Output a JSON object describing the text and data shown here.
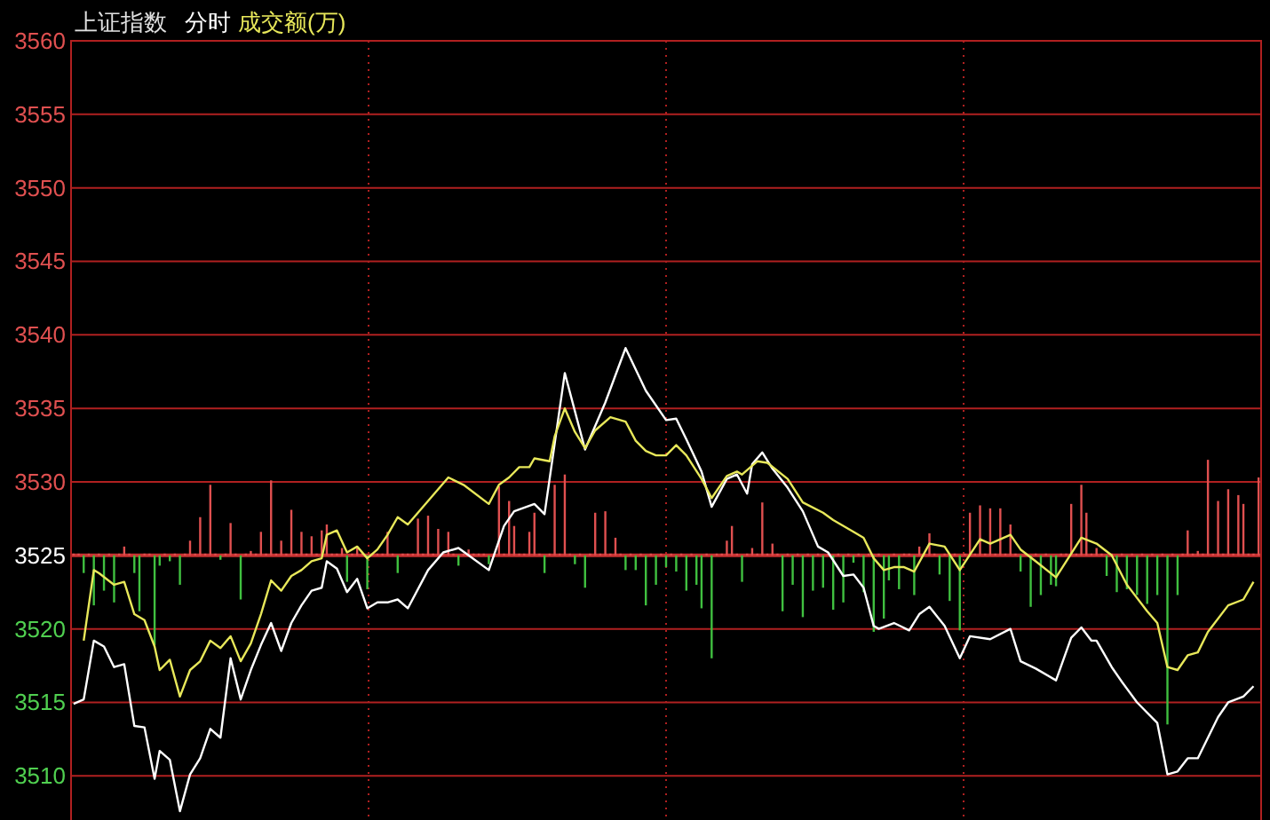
{
  "chart_data": {
    "type": "line",
    "title": "上证指数",
    "subtitle": "分时",
    "ylim": [
      3507,
      3560
    ],
    "yticks": [
      3510,
      3515,
      3520,
      3525,
      3530,
      3535,
      3540,
      3545,
      3550,
      3555,
      3560
    ],
    "grid": "y",
    "tick_labels": "y",
    "legend": "top left",
    "marker": "none",
    "line_style": "solid",
    "categories": [
      null,
      null,
      null,
      null,
      null,
      null,
      null,
      null,
      null,
      null,
      null,
      null,
      null,
      null,
      null,
      null,
      null,
      null,
      null,
      null,
      null,
      null,
      null,
      null,
      null,
      null,
      null,
      null,
      null,
      null,
      null,
      null,
      null,
      null,
      null,
      null,
      null,
      null,
      null,
      null,
      null,
      null,
      null,
      null,
      null,
      null,
      null,
      null,
      null,
      null,
      null,
      null,
      null,
      null,
      null,
      null,
      null,
      null,
      null,
      null,
      null,
      null,
      null,
      null,
      null,
      null,
      null,
      null,
      null,
      null,
      null,
      null,
      null,
      null,
      null,
      null,
      null,
      null,
      null,
      null,
      null,
      null,
      null,
      null,
      null,
      null,
      null,
      null,
      null,
      null,
      null,
      null,
      null,
      null,
      null,
      null,
      null,
      null,
      null,
      null,
      null,
      null,
      null,
      null,
      null,
      null,
      null,
      null,
      null,
      null,
      null,
      null,
      null,
      null,
      null,
      null,
      null,
      null,
      null,
      null,
      null,
      null,
      null,
      null,
      null,
      null,
      null,
      null,
      null,
      null,
      null,
      null,
      null,
      null,
      null,
      null,
      null,
      null,
      null,
      null,
      null,
      null,
      null,
      null,
      null,
      null,
      null,
      null,
      null,
      null,
      null,
      null,
      null,
      null,
      null,
      null,
      null,
      null,
      null,
      null,
      null,
      null,
      null,
      null,
      null,
      null,
      null,
      null,
      null,
      null,
      null,
      null,
      null,
      null,
      null,
      null,
      null,
      null,
      null,
      null,
      null,
      null,
      null,
      null,
      null,
      null,
      null,
      null,
      null,
      null,
      null,
      null,
      null,
      null,
      null,
      null,
      null,
      null,
      null,
      null,
      null,
      null,
      null,
      null,
      null,
      null,
      null,
      null,
      null,
      null,
      null,
      null,
      null,
      null,
      null,
      null,
      null,
      null,
      null,
      null,
      null,
      null,
      null,
      null,
      null,
      null,
      null,
      null,
      null,
      null,
      null,
      null,
      null,
      null,
      null
    ],
    "ref_lines": [
      {
        "axis": "y",
        "value": 3525,
        "color": "#c83232",
        "line_style": "solid"
      }
    ],
    "series": [
      {
        "type": "bar",
        "colors": [
          "#e05050",
          "#e05050",
          "#40c040",
          "#e05050",
          "#40c040",
          "#e05050",
          "#40c040",
          "#e05050",
          "#40c040",
          "#e05050",
          "#e05050",
          "#e05050",
          "#40c040",
          "#40c040",
          "#e05050",
          "#e05050",
          "#40c040",
          "#40c040",
          "#e05050",
          "#40c040",
          "#e05050",
          "#40c040",
          "#e05050",
          "#e05050",
          "#e05050",
          "#e05050",
          "#e05050",
          "#e05050",
          "#e05050",
          "#40c040",
          "#e05050",
          "#e05050",
          "#e05050",
          "#40c040",
          "#e05050",
          "#e05050",
          "#e05050",
          "#e05050",
          "#e05050",
          "#e05050",
          "#e05050",
          "#e05050",
          "#e05050",
          "#e05050",
          "#e05050",
          "#e05050",
          "#e05050",
          "#e05050",
          "#e05050",
          "#e05050",
          "#e05050",
          "#e05050",
          "#e05050",
          "#e05050",
          "#40c040",
          "#e05050",
          "#e05050",
          "#e05050",
          "#40c040",
          "#e05050",
          "#e05050",
          "#e05050",
          "#e05050",
          "#e05050",
          "#40c040",
          "#e05050",
          "#e05050",
          "#e05050",
          "#e05050",
          "#e05050",
          "#e05050",
          "#e05050",
          "#e05050",
          "#e05050",
          "#e05050",
          "#e05050",
          "#40c040",
          "#e05050",
          "#e05050",
          "#e05050",
          "#e05050",
          "#e05050",
          "#40c040",
          "#e05050",
          "#e05050",
          "#e05050",
          "#e05050",
          "#e05050",
          "#e05050",
          "#e05050",
          "#e05050",
          "#e05050",
          "#e05050",
          "#40c040",
          "#e05050",
          "#e05050",
          "#e05050",
          "#e05050",
          "#e05050",
          "#40c040",
          "#e05050",
          "#40c040",
          "#e05050",
          "#e05050",
          "#e05050",
          "#e05050",
          "#e05050",
          "#e05050",
          "#e05050",
          "#40c040",
          "#e05050",
          "#40c040",
          "#e05050",
          "#40c040",
          "#e05050",
          "#40c040",
          "#e05050",
          "#40c040",
          "#e05050",
          "#40c040",
          "#e05050",
          "#40c040",
          "#e05050",
          "#40c040",
          "#40c040",
          "#e05050",
          "#40c040",
          "#e05050",
          "#e05050",
          "#e05050",
          "#e05050",
          "#e05050",
          "#40c040",
          "#e05050",
          "#e05050",
          "#e05050",
          "#e05050",
          "#e05050",
          "#e05050",
          "#e05050",
          "#40c040",
          "#e05050",
          "#40c040",
          "#e05050",
          "#40c040",
          "#e05050",
          "#40c040",
          "#e05050",
          "#40c040",
          "#e05050",
          "#40c040",
          "#e05050",
          "#40c040",
          "#e05050",
          "#40c040",
          "#e05050",
          "#40c040",
          "#e05050",
          "#40c040",
          "#e05050",
          "#40c040",
          "#40c040",
          "#e05050",
          "#40c040",
          "#e05050",
          "#e05050",
          "#40c040",
          "#e05050",
          "#e05050",
          "#e05050",
          "#e05050",
          "#40c040",
          "#e05050",
          "#40c040",
          "#e05050",
          "#40c040",
          "#e05050",
          "#e05050",
          "#e05050",
          "#e05050",
          "#e05050",
          "#e05050",
          "#e05050",
          "#e05050",
          "#e05050",
          "#e05050",
          "#e05050",
          "#40c040",
          "#e05050",
          "#40c040",
          "#e05050",
          "#40c040",
          "#e05050",
          "#40c040",
          "#40c040",
          "#e05050",
          "#e05050",
          "#e05050",
          "#e05050",
          "#e05050",
          "#e05050",
          "#e05050",
          "#e05050",
          "#e05050",
          "#40c040",
          "#e05050",
          "#40c040",
          "#e05050",
          "#40c040",
          "#e05050",
          "#40c040",
          "#e05050",
          "#40c040",
          "#e05050",
          "#40c040",
          "#e05050",
          "#40c040",
          "#e05050",
          "#40c040",
          "#e05050",
          "#e05050",
          "#e05050",
          "#e05050",
          "#e05050",
          "#e05050",
          "#e05050",
          "#e05050",
          "#e05050",
          "#e05050",
          "#e05050",
          "#e05050",
          "#e05050",
          "#e05050",
          "#e05050",
          "#e05050"
        ],
        "base": [
          3525,
          3525,
          3525,
          3525,
          3525,
          3525,
          3525,
          3525,
          3525,
          3525,
          3525,
          3525,
          3525,
          3525,
          3525,
          3525,
          3525,
          3525,
          3525,
          3525,
          3525,
          3525,
          3525,
          3525,
          3525,
          3525,
          3525,
          3525,
          3525,
          3525,
          3525,
          3525,
          3525,
          3525,
          3525,
          3525,
          3525,
          3525,
          3525,
          3525,
          3525,
          3525,
          3525,
          3525,
          3525,
          3525,
          3525,
          3525,
          3525,
          3525,
          3525,
          3525,
          3525,
          3525,
          3525,
          3525,
          3525,
          3525,
          3525,
          3525,
          3525,
          3525,
          3525,
          3525,
          3525,
          3525,
          3525,
          3525,
          3525,
          3525,
          3525,
          3525,
          3525,
          3525,
          3525,
          3525,
          3525,
          3525,
          3525,
          3525,
          3525,
          3525,
          3525,
          3525,
          3525,
          3525,
          3525,
          3525,
          3525,
          3525,
          3525,
          3525,
          3525,
          3525,
          3525,
          3525,
          3525,
          3525,
          3525,
          3525,
          3525,
          3525,
          3525,
          3525,
          3525,
          3525,
          3525,
          3525,
          3525,
          3525,
          3525,
          3525,
          3525,
          3525,
          3525,
          3525,
          3525,
          3525,
          3525,
          3525,
          3525,
          3525,
          3525,
          3525,
          3525,
          3525,
          3525,
          3525,
          3525,
          3525,
          3525,
          3525,
          3525,
          3525,
          3525,
          3525,
          3525,
          3525,
          3525,
          3525,
          3525,
          3525,
          3525,
          3525,
          3525,
          3525,
          3525,
          3525,
          3525,
          3525,
          3525,
          3525,
          3525,
          3525,
          3525,
          3525,
          3525,
          3525,
          3525,
          3525,
          3525,
          3525,
          3525,
          3525,
          3525,
          3525,
          3525,
          3525,
          3525,
          3525,
          3525,
          3525,
          3525,
          3525,
          3525,
          3525,
          3525,
          3525,
          3525,
          3525,
          3525,
          3525,
          3525,
          3525,
          3525,
          3525,
          3525,
          3525,
          3525,
          3525,
          3525,
          3525,
          3525,
          3525,
          3525,
          3525,
          3525,
          3525,
          3525,
          3525,
          3525,
          3525,
          3525,
          3525,
          3525,
          3525,
          3525,
          3525,
          3525,
          3525,
          3525,
          3525,
          3525,
          3525,
          3525,
          3525,
          3525,
          3525,
          3525,
          3525,
          3525,
          3525,
          3525,
          3525,
          3525,
          3525,
          3525,
          3525,
          3525,
          3525,
          3525,
          3525,
          3525,
          3525,
          3525
        ],
        "values": [
          0,
          0,
          -1.2,
          0,
          -3.4,
          0,
          -2.4,
          0,
          -3.2,
          0,
          0.6,
          0,
          -1.2,
          -3.8,
          0,
          0,
          -6.1,
          -0.7,
          0,
          -0.4,
          0,
          -2.0,
          0,
          1.0,
          0,
          2.6,
          0,
          4.8,
          0,
          -0.3,
          0,
          2.2,
          0,
          -3.0,
          0,
          0.3,
          0,
          1.6,
          0,
          5.1,
          0,
          1.0,
          0,
          3.1,
          0,
          1.6,
          0,
          1.3,
          0,
          1.7,
          2.1,
          0,
          0,
          0.5,
          -1.8,
          0,
          0.5,
          0,
          -2.3,
          0,
          0,
          0,
          1.6,
          0,
          -1.2,
          0,
          0,
          0,
          2.5,
          0,
          2.7,
          0,
          1.8,
          0,
          1.6,
          0,
          -0.7,
          0,
          0.4,
          0,
          0,
          0,
          -0.6,
          0,
          4.7,
          0,
          3.7,
          2.0,
          0,
          0,
          1.6,
          2.9,
          0,
          -1.2,
          0,
          4.8,
          0,
          5.5,
          0,
          -0.6,
          0,
          -2.2,
          0,
          2.9,
          0,
          3.0,
          0,
          1.2,
          0,
          -1.0,
          0,
          -1.0,
          0,
          -3.4,
          0,
          -2.0,
          0,
          -0.8,
          0,
          -1.1,
          0,
          -2.4,
          0,
          -2.0,
          -3.6,
          0,
          -7.0,
          0,
          0,
          1.0,
          2.0,
          0,
          -1.8,
          0,
          0.5,
          0,
          3.6,
          0,
          0.8,
          0,
          -3.8,
          0,
          -2.0,
          0,
          -4.2,
          0,
          -2.4,
          0,
          -2.2,
          0,
          -3.7,
          0,
          -3.2,
          0,
          -0.5,
          0,
          -2.5,
          0,
          -5.2,
          0,
          -4.3,
          -1.7,
          0,
          -2.3,
          0,
          0,
          -2.7,
          0.6,
          0,
          1.5,
          0,
          -1.3,
          0,
          -3.1,
          0,
          -5.1,
          0,
          2.9,
          0,
          3.4,
          0,
          3.2,
          0,
          3.2,
          0,
          2.1,
          0,
          -1.1,
          0,
          -3.5,
          0,
          -2.7,
          0,
          -2.0,
          -2.1,
          0,
          0,
          3.5,
          0,
          4.8,
          2.9,
          0,
          0.5,
          0,
          -1.4,
          0,
          -2.5,
          0,
          -2.3,
          0,
          -2.7,
          0,
          -3.3,
          0,
          -2.7,
          0,
          -11.5,
          0,
          -2.7,
          0,
          1.7,
          0,
          0.3,
          0,
          6.5,
          0,
          3.7,
          0,
          4.5,
          0,
          4.1,
          3.5,
          0,
          0,
          5.3
        ]
      },
      {
        "color": "#ffffff",
        "values": [
          3514.9,
          null,
          3515.2,
          null,
          3519.2,
          null,
          3518.8,
          null,
          3517.4,
          null,
          3517.6,
          null,
          3513.4,
          null,
          3513.3,
          null,
          3509.8,
          3511.7,
          null,
          3511.1,
          null,
          3507.6,
          null,
          3510.1,
          null,
          3511.2,
          null,
          3513.2,
          null,
          3512.6,
          null,
          3518.0,
          null,
          3515.2,
          null,
          3517.2,
          null,
          3518.9,
          null,
          3520.4,
          null,
          3518.5,
          null,
          3520.4,
          null,
          3521.6,
          null,
          3522.6,
          null,
          3522.8,
          3524.6,
          null,
          3524.1,
          null,
          3522.5,
          null,
          3523.4,
          null,
          3521.4,
          null,
          3521.8,
          null,
          3521.8,
          null,
          3522.0,
          null,
          3521.4,
          null,
          null,
          null,
          3524.0,
          null,
          null,
          3525.2,
          null,
          null,
          3525.5,
          null,
          3525.0,
          null,
          null,
          null,
          3524.0,
          null,
          null,
          3527.0,
          null,
          3528.0,
          null,
          null,
          null,
          3528.5,
          null,
          3527.8,
          null,
          3532.6,
          null,
          3537.4,
          null,
          null,
          null,
          3532.2,
          null,
          null,
          null,
          3535.4,
          null,
          null,
          null,
          3539.1,
          null,
          null,
          null,
          3536.2,
          null,
          null,
          null,
          3534.2,
          null,
          3534.3,
          null,
          3532.9,
          null,
          null,
          3530.7,
          null,
          3528.3,
          null,
          null,
          3530.2,
          null,
          3530.5,
          null,
          3529.2,
          3531.2,
          null,
          3532.0,
          null,
          3530.9,
          null,
          null,
          3529.6,
          null,
          null,
          3528.0,
          null,
          null,
          3525.6,
          null,
          3525.2,
          null,
          null,
          3523.6,
          null,
          3523.7,
          null,
          3522.8,
          null,
          3520.2,
          3520.0,
          null,
          null,
          3520.4,
          null,
          null,
          3519.9,
          null,
          3521.0,
          null,
          3521.5,
          null,
          null,
          3520.2,
          null,
          null,
          3518.0,
          null,
          3519.5,
          null,
          null,
          null,
          3519.3,
          null,
          null,
          null,
          3520.0,
          null,
          3517.8,
          null,
          null,
          3517.3,
          null,
          null,
          null,
          3516.5,
          null,
          null,
          3519.4,
          null,
          3520.1,
          null,
          3519.2,
          3519.2,
          null,
          null,
          3517.4,
          null,
          3516.4,
          null,
          null,
          3515.0,
          null,
          null,
          null,
          3513.6,
          null,
          3510.1,
          null,
          3510.3,
          null,
          3511.2,
          null,
          3511.2,
          null,
          null,
          null,
          3514.0,
          null,
          3515.0,
          null,
          null,
          3515.4,
          null,
          3516.1,
          null
        ]
      },
      {
        "name": "成交额(万)",
        "color": "#e8e85a",
        "values": [
          null,
          null,
          3519.2,
          null,
          3524.0,
          3523.8,
          null,
          null,
          3523.0,
          null,
          3523.2,
          null,
          3521.0,
          null,
          3520.6,
          null,
          3518.8,
          3517.2,
          null,
          3517.9,
          null,
          3515.4,
          null,
          3517.2,
          null,
          3517.8,
          null,
          3519.2,
          null,
          3518.7,
          null,
          3519.5,
          null,
          3517.8,
          null,
          3519.0,
          null,
          3521.0,
          null,
          3523.3,
          null,
          3522.6,
          null,
          3523.6,
          null,
          3524.0,
          null,
          3524.6,
          null,
          3524.8,
          3526.4,
          null,
          3526.7,
          null,
          3525.2,
          null,
          3525.6,
          null,
          3524.8,
          null,
          3525.4,
          null,
          3526.4,
          null,
          3527.6,
          null,
          3527.1,
          null,
          3527.9,
          null,
          3528.7,
          null,
          null,
          null,
          3530.3,
          null,
          null,
          3529.8,
          null,
          null,
          null,
          null,
          3528.5,
          null,
          3529.8,
          null,
          3530.3,
          null,
          3531.0,
          null,
          3531.0,
          3531.6,
          null,
          null,
          3531.4,
          3533.1,
          null,
          3535.0,
          null,
          3533.4,
          null,
          3532.3,
          null,
          3533.5,
          null,
          null,
          3534.4,
          null,
          null,
          3534.1,
          null,
          3532.8,
          null,
          3532.1,
          null,
          3531.8,
          null,
          3531.8,
          null,
          3532.5,
          null,
          3531.8,
          null,
          null,
          3530.2,
          null,
          3528.9,
          null,
          null,
          3530.4,
          null,
          3530.7,
          3530.5,
          null,
          null,
          3531.4,
          null,
          3531.3,
          null,
          null,
          null,
          3530.2,
          null,
          null,
          3528.6,
          null,
          null,
          null,
          3527.9,
          null,
          3527.4,
          null,
          null,
          null,
          3526.6,
          null,
          3526.2,
          null,
          3524.8,
          null,
          3524.0,
          null,
          3524.2,
          null,
          3524.2,
          null,
          3523.9,
          null,
          null,
          3525.8,
          null,
          null,
          3525.6,
          null,
          null,
          3524.0,
          null,
          null,
          null,
          3526.1,
          null,
          3525.8,
          null,
          null,
          null,
          3526.4,
          null,
          3525.4,
          null,
          null,
          3524.6,
          null,
          null,
          null,
          3523.5,
          null,
          null,
          null,
          null,
          3526.2,
          null,
          null,
          3525.8,
          null,
          null,
          3525.0,
          null,
          null,
          3523.0,
          null,
          null,
          null,
          3521.2,
          null,
          3520.4,
          null,
          3517.4,
          null,
          3517.2,
          null,
          3518.2,
          null,
          3518.4,
          null,
          3519.8,
          null,
          null,
          null,
          3521.6,
          null,
          null,
          3522.0,
          null,
          3523.2,
          null
        ]
      }
    ]
  }
}
